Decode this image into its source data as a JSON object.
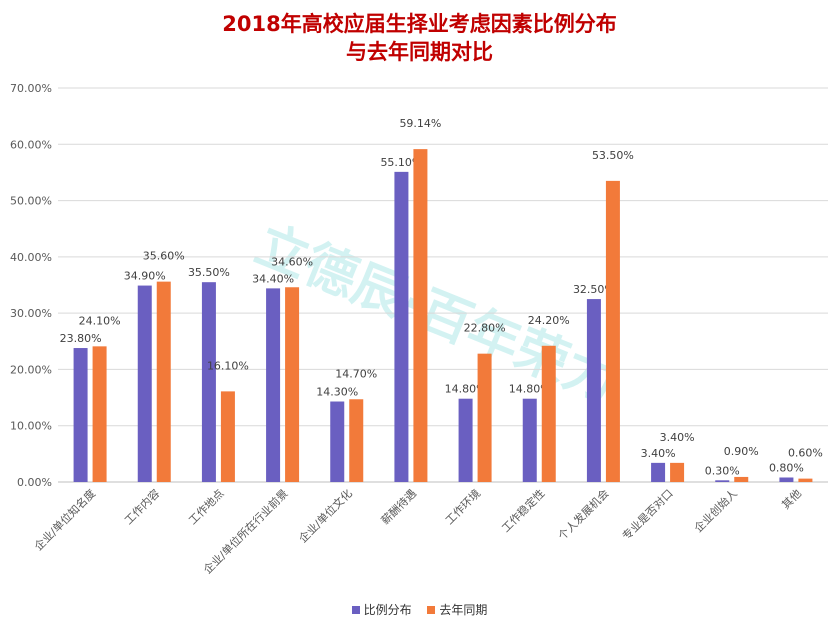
{
  "chart_data": {
    "type": "bar",
    "title_lines": [
      "2018年高校应届生择业考虑因素比例分布",
      "与去年同期对比"
    ],
    "categories": [
      "企业/单位知名度",
      "工作内容",
      "工作地点",
      "企业/单位所在行业前景",
      "企业/单位文化",
      "薪酬待遇",
      "工作环境",
      "工作稳定性",
      "个人发展机会",
      "专业是否对口",
      "企业创始人",
      "其他"
    ],
    "series": [
      {
        "name": "比例分布",
        "color": "#6a5fc1",
        "values": [
          23.8,
          34.9,
          35.5,
          34.4,
          14.3,
          55.1,
          14.8,
          14.8,
          32.5,
          3.4,
          0.3,
          0.8
        ],
        "labels": [
          "23.80%",
          "34.90%",
          "35.50%",
          "34.40%",
          "14.30%",
          "55.10%",
          "14.80%",
          "14.80%",
          "32.50%",
          "3.40%",
          "0.30%",
          "0.80%"
        ]
      },
      {
        "name": "去年同期",
        "color": "#f27a3a",
        "values": [
          24.1,
          35.6,
          16.1,
          34.6,
          14.7,
          59.14,
          22.8,
          24.2,
          53.5,
          3.4,
          0.9,
          0.6
        ],
        "labels": [
          "24.10%",
          "35.60%",
          "16.10%",
          "34.60%",
          "14.70%",
          "59.14%",
          "22.80%",
          "24.20%",
          "53.50%",
          "3.40%",
          "0.90%",
          "0.60%"
        ]
      }
    ],
    "yticks": [
      "0.00%",
      "10.00%",
      "20.00%",
      "30.00%",
      "40.00%",
      "50.00%",
      "60.00%",
      "70.00%"
    ],
    "ylim": [
      0,
      70
    ],
    "grid": true,
    "legend_position": "bottom"
  },
  "watermark": {
    "text": "立德辰·百年荣力",
    "color1": "#3cc8c8",
    "color2": "#e05050"
  }
}
